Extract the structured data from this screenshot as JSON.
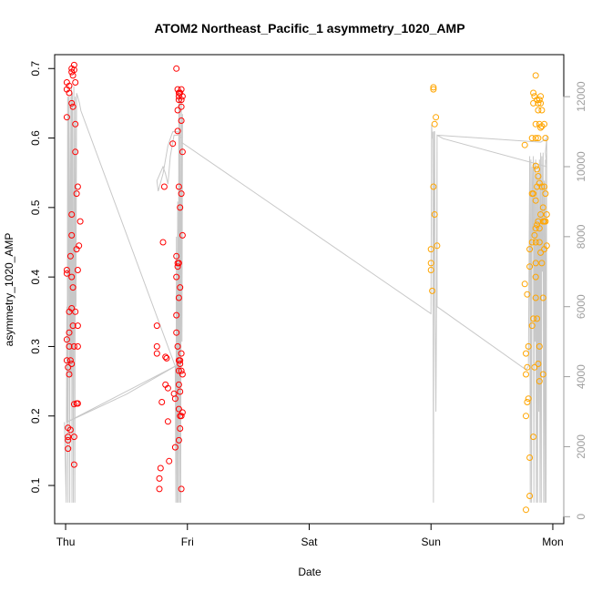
{
  "chart_data": {
    "type": "scatter",
    "title": "ATOM2 Northeast_Pacific_1 asymmetry_1020_AMP",
    "xlabel": "Date",
    "ylabel": "asymmetry_1020_AMP",
    "x_unit": "days",
    "x_ticks": [
      {
        "value": 0,
        "label": "Thu"
      },
      {
        "value": 1,
        "label": "Fri"
      },
      {
        "value": 2,
        "label": "Sat"
      },
      {
        "value": 3,
        "label": "Sun"
      },
      {
        "value": 4,
        "label": "Mon"
      }
    ],
    "xlim": [
      -0.09,
      4.09
    ],
    "ylim": [
      0.045,
      0.72
    ],
    "y_ticks": [
      0.1,
      0.2,
      0.3,
      0.4,
      0.5,
      0.6,
      0.7
    ],
    "y2lim": [
      -200,
      13200
    ],
    "y2_ticks": [
      0,
      2000,
      4000,
      6000,
      8000,
      10000,
      12000
    ],
    "grid": false,
    "legend": "none",
    "colors": {
      "series_red": "#ff0000",
      "series_orange": "#ffa500",
      "trace": "#c8c8c8",
      "right_axis": "#9e9e9e"
    },
    "series": [
      {
        "color": "#ff0000",
        "points": [
          [
            0.01,
            0.68
          ],
          [
            0.01,
            0.67
          ],
          [
            0.01,
            0.63
          ],
          [
            0.01,
            0.41
          ],
          [
            0.01,
            0.405
          ],
          [
            0.01,
            0.31
          ],
          [
            0.01,
            0.28
          ],
          [
            0.02,
            0.27
          ],
          [
            0.02,
            0.17
          ],
          [
            0.02,
            0.165
          ],
          [
            0.02,
            0.153
          ],
          [
            0.02,
            0.183
          ],
          [
            0.03,
            0.675
          ],
          [
            0.03,
            0.665
          ],
          [
            0.03,
            0.35
          ],
          [
            0.03,
            0.32
          ],
          [
            0.03,
            0.3
          ],
          [
            0.03,
            0.26
          ],
          [
            0.04,
            0.43
          ],
          [
            0.04,
            0.28
          ],
          [
            0.04,
            0.18
          ],
          [
            0.05,
            0.7
          ],
          [
            0.05,
            0.695
          ],
          [
            0.05,
            0.65
          ],
          [
            0.05,
            0.49
          ],
          [
            0.05,
            0.46
          ],
          [
            0.05,
            0.4
          ],
          [
            0.05,
            0.355
          ],
          [
            0.05,
            0.275
          ],
          [
            0.06,
            0.69
          ],
          [
            0.06,
            0.645
          ],
          [
            0.06,
            0.385
          ],
          [
            0.06,
            0.33
          ],
          [
            0.07,
            0.705
          ],
          [
            0.07,
            0.698
          ],
          [
            0.07,
            0.3
          ],
          [
            0.07,
            0.17
          ],
          [
            0.07,
            0.13
          ],
          [
            0.07,
            0.217
          ],
          [
            0.08,
            0.62
          ],
          [
            0.08,
            0.68
          ],
          [
            0.08,
            0.58
          ],
          [
            0.08,
            0.35
          ],
          [
            0.09,
            0.218
          ],
          [
            0.09,
            0.44
          ],
          [
            0.09,
            0.52
          ],
          [
            0.1,
            0.53
          ],
          [
            0.1,
            0.41
          ],
          [
            0.1,
            0.33
          ],
          [
            0.1,
            0.218
          ],
          [
            0.1,
            0.3
          ],
          [
            0.11,
            0.445
          ],
          [
            0.12,
            0.48
          ],
          [
            0.75,
            0.33
          ],
          [
            0.75,
            0.3
          ],
          [
            0.75,
            0.29
          ],
          [
            0.77,
            0.11
          ],
          [
            0.77,
            0.095
          ],
          [
            0.78,
            0.125
          ],
          [
            0.79,
            0.22
          ],
          [
            0.8,
            0.45
          ],
          [
            0.81,
            0.53
          ],
          [
            0.82,
            0.285
          ],
          [
            0.82,
            0.245
          ],
          [
            0.83,
            0.283
          ],
          [
            0.84,
            0.192
          ],
          [
            0.84,
            0.24
          ],
          [
            0.85,
            0.135
          ],
          [
            0.88,
            0.592
          ],
          [
            0.89,
            0.232
          ],
          [
            0.9,
            0.225
          ],
          [
            0.9,
            0.155
          ],
          [
            0.91,
            0.4
          ],
          [
            0.91,
            0.43
          ],
          [
            0.91,
            0.345
          ],
          [
            0.91,
            0.32
          ],
          [
            0.91,
            0.7
          ],
          [
            0.92,
            0.67
          ],
          [
            0.92,
            0.64
          ],
          [
            0.92,
            0.61
          ],
          [
            0.92,
            0.42
          ],
          [
            0.92,
            0.415
          ],
          [
            0.92,
            0.3
          ],
          [
            0.93,
            0.665
          ],
          [
            0.93,
            0.66
          ],
          [
            0.93,
            0.655
          ],
          [
            0.93,
            0.53
          ],
          [
            0.93,
            0.42
          ],
          [
            0.93,
            0.37
          ],
          [
            0.93,
            0.28
          ],
          [
            0.93,
            0.265
          ],
          [
            0.93,
            0.245
          ],
          [
            0.93,
            0.21
          ],
          [
            0.93,
            0.165
          ],
          [
            0.94,
            0.665
          ],
          [
            0.94,
            0.5
          ],
          [
            0.94,
            0.385
          ],
          [
            0.94,
            0.28
          ],
          [
            0.94,
            0.275
          ],
          [
            0.94,
            0.235
          ],
          [
            0.94,
            0.2
          ],
          [
            0.94,
            0.182
          ],
          [
            0.95,
            0.67
          ],
          [
            0.95,
            0.655
          ],
          [
            0.95,
            0.645
          ],
          [
            0.95,
            0.625
          ],
          [
            0.95,
            0.52
          ],
          [
            0.95,
            0.29
          ],
          [
            0.95,
            0.265
          ],
          [
            0.95,
            0.2
          ],
          [
            0.95,
            0.095
          ],
          [
            0.96,
            0.66
          ],
          [
            0.96,
            0.58
          ],
          [
            0.96,
            0.46
          ],
          [
            0.96,
            0.26
          ],
          [
            0.96,
            0.205
          ]
        ]
      },
      {
        "color": "#ffa500",
        "points": [
          [
            3.0,
            0.44
          ],
          [
            3.0,
            0.42
          ],
          [
            3.0,
            0.41
          ],
          [
            3.01,
            0.38
          ],
          [
            3.02,
            0.673
          ],
          [
            3.02,
            0.67
          ],
          [
            3.02,
            0.53
          ],
          [
            3.03,
            0.62
          ],
          [
            3.03,
            0.49
          ],
          [
            3.04,
            0.63
          ],
          [
            3.05,
            0.445
          ],
          [
            3.77,
            0.59
          ],
          [
            3.77,
            0.39
          ],
          [
            3.78,
            0.29
          ],
          [
            3.78,
            0.26
          ],
          [
            3.78,
            0.2
          ],
          [
            3.78,
            0.065
          ],
          [
            3.79,
            0.27
          ],
          [
            3.79,
            0.22
          ],
          [
            3.79,
            0.375
          ],
          [
            3.8,
            0.3
          ],
          [
            3.8,
            0.225
          ],
          [
            3.81,
            0.44
          ],
          [
            3.81,
            0.415
          ],
          [
            3.81,
            0.14
          ],
          [
            3.81,
            0.085
          ],
          [
            3.83,
            0.6
          ],
          [
            3.83,
            0.52
          ],
          [
            3.83,
            0.45
          ],
          [
            3.83,
            0.33
          ],
          [
            3.84,
            0.665
          ],
          [
            3.84,
            0.65
          ],
          [
            3.84,
            0.52
          ],
          [
            3.84,
            0.34
          ],
          [
            3.84,
            0.17
          ],
          [
            3.85,
            0.66
          ],
          [
            3.85,
            0.46
          ],
          [
            3.85,
            0.27
          ],
          [
            3.86,
            0.69
          ],
          [
            3.86,
            0.62
          ],
          [
            3.86,
            0.6
          ],
          [
            3.86,
            0.56
          ],
          [
            3.86,
            0.51
          ],
          [
            3.86,
            0.47
          ],
          [
            3.86,
            0.45
          ],
          [
            3.86,
            0.42
          ],
          [
            3.86,
            0.37
          ],
          [
            3.86,
            0.4
          ],
          [
            3.87,
            0.655
          ],
          [
            3.87,
            0.555
          ],
          [
            3.87,
            0.53
          ],
          [
            3.87,
            0.475
          ],
          [
            3.87,
            0.34
          ],
          [
            3.88,
            0.65
          ],
          [
            3.88,
            0.64
          ],
          [
            3.88,
            0.6
          ],
          [
            3.88,
            0.545
          ],
          [
            3.88,
            0.48
          ],
          [
            3.88,
            0.275
          ],
          [
            3.89,
            0.655
          ],
          [
            3.89,
            0.62
          ],
          [
            3.89,
            0.535
          ],
          [
            3.89,
            0.47
          ],
          [
            3.89,
            0.45
          ],
          [
            3.89,
            0.3
          ],
          [
            3.89,
            0.25
          ],
          [
            3.9,
            0.66
          ],
          [
            3.9,
            0.65
          ],
          [
            3.9,
            0.615
          ],
          [
            3.9,
            0.49
          ],
          [
            3.9,
            0.435
          ],
          [
            3.91,
            0.64
          ],
          [
            3.91,
            0.617
          ],
          [
            3.91,
            0.53
          ],
          [
            3.91,
            0.42
          ],
          [
            3.92,
            0.5
          ],
          [
            3.92,
            0.48
          ],
          [
            3.92,
            0.37
          ],
          [
            3.92,
            0.26
          ],
          [
            3.93,
            0.62
          ],
          [
            3.93,
            0.53
          ],
          [
            3.93,
            0.48
          ],
          [
            3.93,
            0.44
          ],
          [
            3.94,
            0.6
          ],
          [
            3.94,
            0.52
          ],
          [
            3.94,
            0.48
          ],
          [
            3.95,
            0.49
          ],
          [
            3.95,
            0.445
          ]
        ]
      }
    ],
    "trace_y2": [
      [
        -0.01,
        2700
      ],
      [
        0.005,
        400
      ],
      [
        0.01,
        6000
      ],
      [
        0.013,
        2700
      ],
      [
        0.017,
        12000
      ],
      [
        0.02,
        400
      ],
      [
        0.025,
        12000
      ],
      [
        0.03,
        9000
      ],
      [
        0.034,
        400
      ],
      [
        0.038,
        12000
      ],
      [
        0.043,
        4000
      ],
      [
        0.048,
        12300
      ],
      [
        0.052,
        400
      ],
      [
        0.056,
        12100
      ],
      [
        0.06,
        6000
      ],
      [
        0.064,
        400
      ],
      [
        0.068,
        12300
      ],
      [
        0.072,
        9000
      ],
      [
        0.076,
        400
      ],
      [
        0.08,
        12000
      ],
      [
        0.085,
        6000
      ],
      [
        0.09,
        12100
      ],
      [
        0.1,
        12000
      ],
      [
        0.115,
        11800
      ],
      [
        0.125,
        11600
      ],
      [
        0.9,
        4300
      ],
      [
        0.5,
        3500
      ],
      [
        0.01,
        2700
      ],
      [
        0.9,
        4300
      ],
      [
        0.905,
        400
      ],
      [
        0.91,
        8000
      ],
      [
        0.915,
        400
      ],
      [
        0.92,
        9000
      ],
      [
        0.925,
        400
      ],
      [
        0.93,
        12300
      ],
      [
        0.935,
        400
      ],
      [
        0.94,
        12000
      ],
      [
        0.945,
        400
      ],
      [
        0.95,
        12200
      ],
      [
        0.955,
        5000
      ],
      [
        0.96,
        11500
      ],
      [
        0.95,
        10900
      ],
      [
        0.89,
        10900
      ],
      [
        0.86,
        10300
      ],
      [
        0.84,
        9500
      ],
      [
        0.82,
        9800
      ],
      [
        0.8,
        10000
      ],
      [
        0.75,
        9600
      ],
      [
        0.76,
        9300
      ],
      [
        0.8,
        9800
      ],
      [
        0.82,
        10200
      ],
      [
        0.84,
        10600
      ],
      [
        0.86,
        10800
      ],
      [
        0.88,
        11000
      ],
      [
        0.92,
        11000
      ],
      [
        0.95,
        10800
      ],
      [
        0.95,
        10700
      ],
      [
        3.0,
        5800
      ],
      [
        3.005,
        11200
      ],
      [
        3.01,
        10800
      ],
      [
        3.015,
        11000
      ],
      [
        3.02,
        400
      ],
      [
        3.022,
        5000
      ],
      [
        3.025,
        11000
      ],
      [
        3.03,
        11000
      ],
      [
        3.035,
        5500
      ],
      [
        3.04,
        3000
      ],
      [
        3.045,
        6000
      ],
      [
        3.05,
        10900
      ],
      [
        3.9,
        10700
      ],
      [
        3.95,
        10800
      ],
      [
        3.94,
        10400
      ],
      [
        3.95,
        10000
      ],
      [
        3.1,
        10800
      ],
      [
        3.05,
        10900
      ],
      [
        3.05,
        6000
      ],
      [
        3.78,
        4200
      ],
      [
        3.8,
        4300
      ],
      [
        3.81,
        10300
      ],
      [
        3.815,
        400
      ],
      [
        3.82,
        10200
      ],
      [
        3.825,
        400
      ],
      [
        3.83,
        10000
      ],
      [
        3.835,
        8000
      ],
      [
        3.84,
        10300
      ],
      [
        3.845,
        400
      ],
      [
        3.85,
        10100
      ],
      [
        3.855,
        5000
      ],
      [
        3.86,
        10200
      ],
      [
        3.865,
        400
      ],
      [
        3.87,
        9800
      ],
      [
        3.875,
        400
      ],
      [
        3.88,
        10000
      ],
      [
        3.885,
        3000
      ],
      [
        3.89,
        10200
      ],
      [
        3.895,
        400
      ],
      [
        3.9,
        10400
      ],
      [
        3.905,
        400
      ],
      [
        3.91,
        10300
      ],
      [
        3.915,
        7000
      ],
      [
        3.92,
        10400
      ],
      [
        3.925,
        400
      ],
      [
        3.93,
        9600
      ],
      [
        3.935,
        400
      ],
      [
        3.94,
        10200
      ],
      [
        3.945,
        400
      ],
      [
        3.95,
        10900
      ]
    ]
  }
}
